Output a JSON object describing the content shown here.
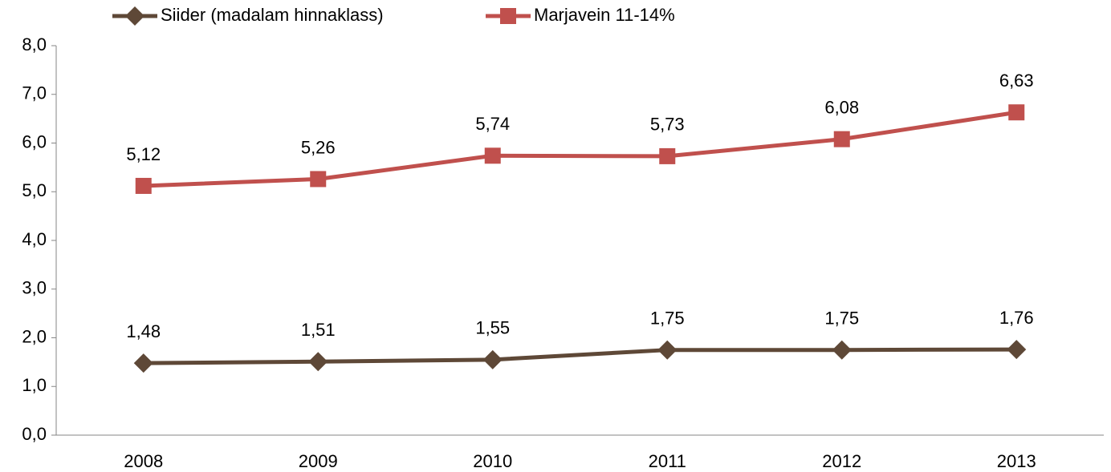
{
  "chart_data": {
    "type": "line",
    "categories": [
      "2008",
      "2009",
      "2010",
      "2011",
      "2012",
      "2013"
    ],
    "series": [
      {
        "name": "Siider (madalam hinnaklass)",
        "color": "#5e4837",
        "marker": "diamond",
        "values": [
          1.48,
          1.51,
          1.55,
          1.75,
          1.75,
          1.76
        ],
        "value_labels": [
          "1,48",
          "1,51",
          "1,55",
          "1,75",
          "1,75",
          "1,76"
        ]
      },
      {
        "name": "Marjavein 11-14%",
        "color": "#c0504d",
        "marker": "square",
        "values": [
          5.12,
          5.26,
          5.74,
          5.73,
          6.08,
          6.63
        ],
        "value_labels": [
          "5,12",
          "5,26",
          "5,74",
          "5,73",
          "6,08",
          "6,63"
        ]
      }
    ],
    "ylim": [
      0,
      8
    ],
    "yticks": [
      {
        "value": 0,
        "label": "0,0"
      },
      {
        "value": 1,
        "label": "1,0"
      },
      {
        "value": 2,
        "label": "2,0"
      },
      {
        "value": 3,
        "label": "3,0"
      },
      {
        "value": 4,
        "label": "4,0"
      },
      {
        "value": 5,
        "label": "5,0"
      },
      {
        "value": 6,
        "label": "6,0"
      },
      {
        "value": 7,
        "label": "7,0"
      },
      {
        "value": 8,
        "label": "8,0"
      }
    ],
    "legend": "top"
  }
}
